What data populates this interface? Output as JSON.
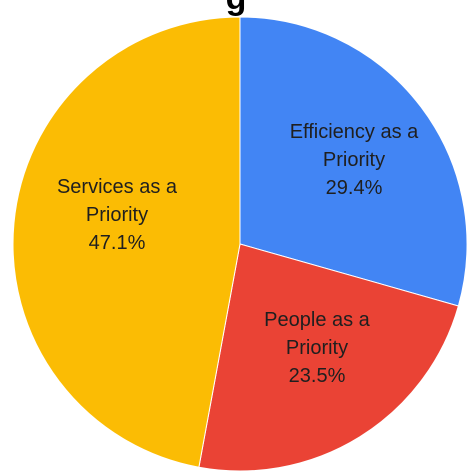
{
  "chart_data": {
    "type": "pie",
    "title": "",
    "title_fragment_visible": "g",
    "start_angle_deg": 0,
    "direction": "clockwise",
    "slices": [
      {
        "label_lines": [
          "Efficiency as a",
          "Priority"
        ],
        "value_text": "29.4%",
        "value": 29.4,
        "color": "#4285F4"
      },
      {
        "label_lines": [
          "People as a",
          "Priority"
        ],
        "value_text": "23.5%",
        "value": 23.5,
        "color": "#EA4335"
      },
      {
        "label_lines": [
          "Services as a",
          "Priority"
        ],
        "value_text": "47.1%",
        "value": 47.1,
        "color": "#FBBC04"
      }
    ]
  }
}
